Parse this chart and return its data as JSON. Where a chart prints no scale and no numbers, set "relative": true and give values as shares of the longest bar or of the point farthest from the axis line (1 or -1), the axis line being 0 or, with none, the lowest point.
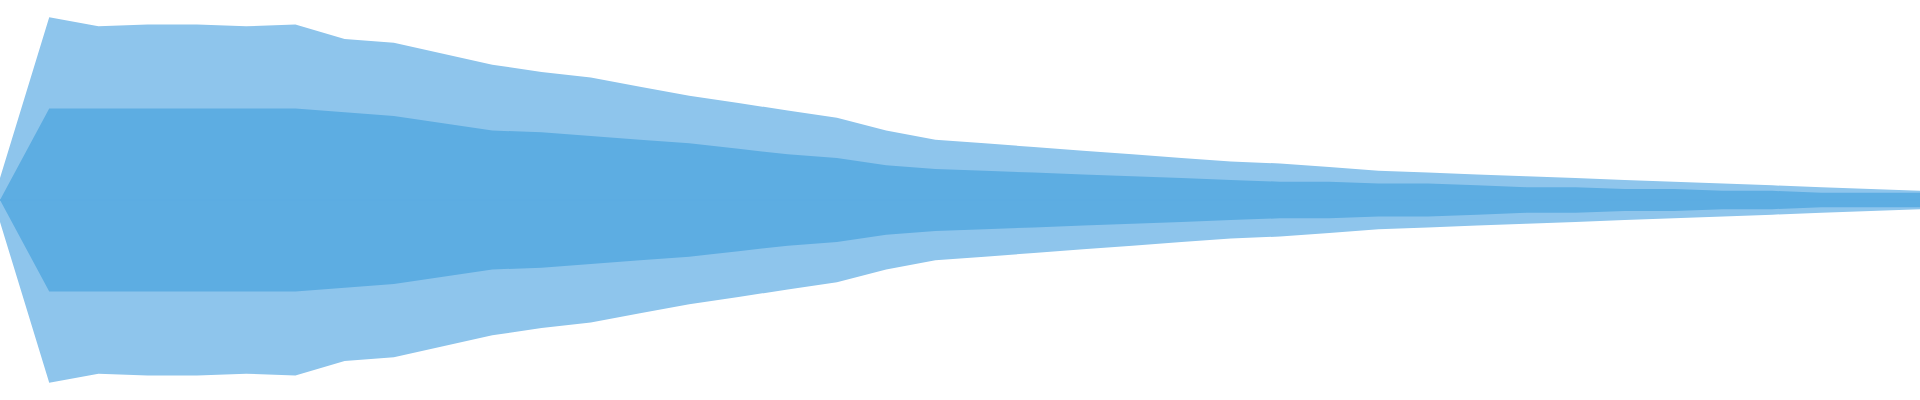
{
  "chart_data": {
    "type": "area",
    "relative": true,
    "categories": [
      null,
      null,
      null,
      null,
      null,
      null,
      null,
      null,
      null,
      null,
      null,
      null,
      null,
      null,
      null,
      null,
      null,
      null,
      null,
      null,
      null,
      null,
      null,
      null,
      null,
      null,
      null,
      null,
      null,
      null,
      null,
      null,
      null,
      null,
      null,
      null,
      null,
      null,
      null,
      null
    ],
    "series": [
      {
        "color": "#8ec5ec",
        "values": [
          0.12,
          1.0,
          0.95,
          0.96,
          0.96,
          0.95,
          0.96,
          0.88,
          0.86,
          0.8,
          0.74,
          0.7,
          0.67,
          0.62,
          0.57,
          0.53,
          0.49,
          0.45,
          0.38,
          0.33,
          0.31,
          0.29,
          0.27,
          0.25,
          0.23,
          0.21,
          0.2,
          0.18,
          0.16,
          0.15,
          0.14,
          0.13,
          0.12,
          0.11,
          0.1,
          0.09,
          0.08,
          0.07,
          0.06,
          0.05
        ]
      },
      {
        "color": "#8ec5ec",
        "values": [
          -0.12,
          -1.0,
          -0.95,
          -0.96,
          -0.96,
          -0.95,
          -0.96,
          -0.88,
          -0.86,
          -0.8,
          -0.74,
          -0.7,
          -0.67,
          -0.62,
          -0.57,
          -0.53,
          -0.49,
          -0.45,
          -0.38,
          -0.33,
          -0.31,
          -0.29,
          -0.27,
          -0.25,
          -0.23,
          -0.21,
          -0.2,
          -0.18,
          -0.16,
          -0.15,
          -0.14,
          -0.13,
          -0.12,
          -0.11,
          -0.1,
          -0.09,
          -0.08,
          -0.07,
          -0.06,
          -0.05
        ]
      },
      {
        "color": "#5dade2",
        "values": [
          0.0,
          0.5,
          0.5,
          0.5,
          0.5,
          0.5,
          0.5,
          0.48,
          0.46,
          0.42,
          0.38,
          0.37,
          0.35,
          0.33,
          0.31,
          0.28,
          0.25,
          0.23,
          0.19,
          0.17,
          0.16,
          0.15,
          0.14,
          0.13,
          0.12,
          0.11,
          0.1,
          0.1,
          0.09,
          0.09,
          0.08,
          0.07,
          0.07,
          0.06,
          0.06,
          0.05,
          0.05,
          0.04,
          0.04,
          0.04
        ]
      },
      {
        "color": "#5dade2",
        "values": [
          0.0,
          -0.5,
          -0.5,
          -0.5,
          -0.5,
          -0.5,
          -0.5,
          -0.48,
          -0.46,
          -0.42,
          -0.38,
          -0.37,
          -0.35,
          -0.33,
          -0.31,
          -0.28,
          -0.25,
          -0.23,
          -0.19,
          -0.17,
          -0.16,
          -0.15,
          -0.14,
          -0.13,
          -0.12,
          -0.11,
          -0.1,
          -0.1,
          -0.09,
          -0.09,
          -0.08,
          -0.07,
          -0.07,
          -0.06,
          -0.06,
          -0.05,
          -0.05,
          -0.04,
          -0.04,
          -0.04
        ]
      }
    ]
  }
}
